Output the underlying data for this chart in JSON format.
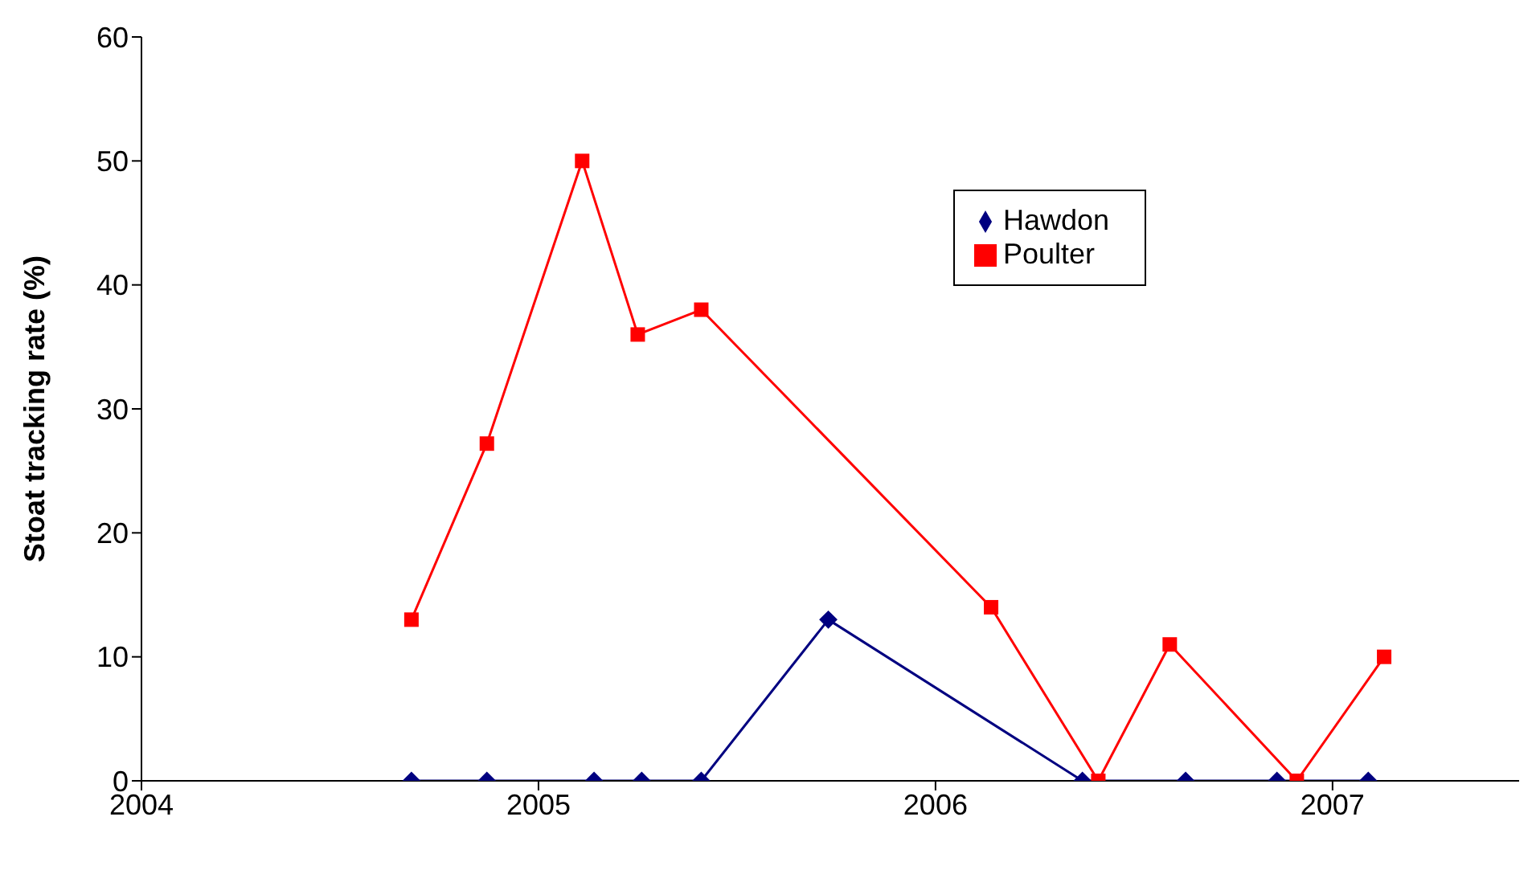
{
  "chart_data": {
    "type": "line",
    "ylabel": "Stoat tracking rate (%)",
    "xlim": [
      2004,
      2007.47
    ],
    "xticks": [
      2004,
      2005,
      2006,
      2007
    ],
    "ylim": [
      0,
      60
    ],
    "yticks": [
      0,
      10,
      20,
      30,
      40,
      50,
      60
    ],
    "grid": false,
    "legend": "top right",
    "line_style": "solid",
    "series": [
      {
        "name": "Hawdon",
        "color": "#000080",
        "marker": "diamond",
        "x": [
          2004.68,
          2004.87,
          2005.14,
          2005.26,
          2005.41,
          2005.73,
          2006.37,
          2006.63,
          2006.86,
          2007.09
        ],
        "values": [
          0,
          0,
          0,
          0,
          0,
          13,
          0,
          0,
          0,
          0
        ]
      },
      {
        "name": "Poulter",
        "color": "#ff0000",
        "marker": "square",
        "x": [
          2004.68,
          2004.87,
          2005.11,
          2005.25,
          2005.41,
          2006.14,
          2006.41,
          2006.59,
          2006.91,
          2007.13
        ],
        "values": [
          13,
          27.2,
          50,
          36,
          38,
          14,
          0,
          11,
          0,
          10
        ]
      }
    ]
  }
}
